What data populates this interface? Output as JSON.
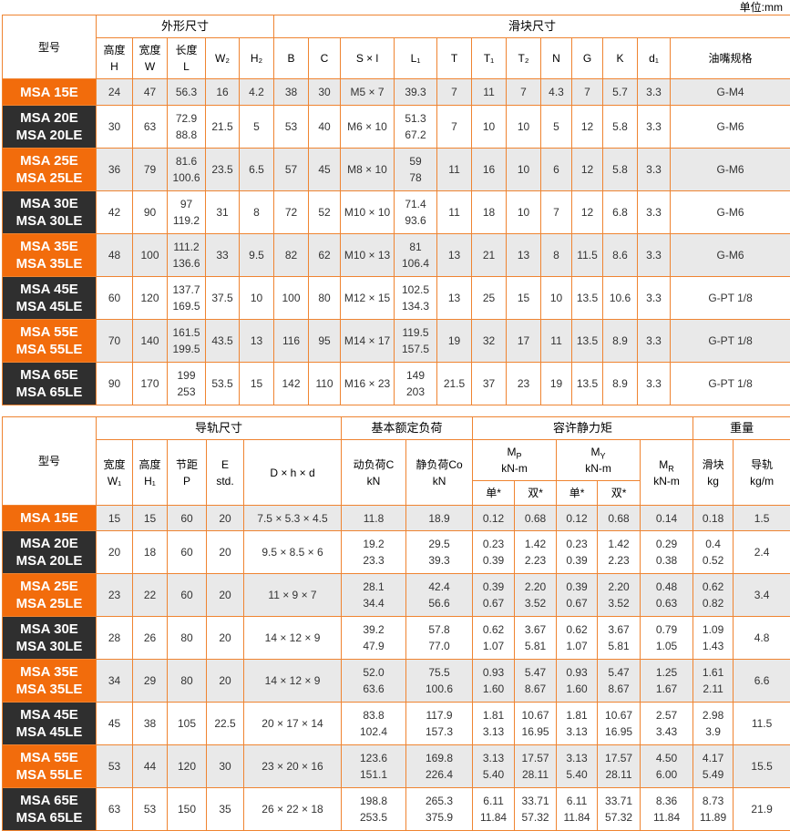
{
  "page": {
    "unit_label": "单位:mm"
  },
  "colors": {
    "accent_orange": "#f26c0c",
    "grid_orange": "#ef8431",
    "dark_label": "#2f2f2f",
    "stripe_gray": "#e9e9e9",
    "text": "#333333"
  },
  "table1": {
    "headers": {
      "model": "型号",
      "group_outer": "外形尺寸",
      "group_slider": "滑块尺寸",
      "cols": [
        "高度\nH",
        "宽度\nW",
        "长度\nL",
        "W₂",
        "H₂",
        "B",
        "C",
        "S × l",
        "L₁",
        "T",
        "T₁",
        "T₂",
        "N",
        "G",
        "K",
        "d₁",
        "油嘴规格"
      ]
    },
    "rows": [
      {
        "model": "MSA 15E",
        "cells": [
          "24",
          "47",
          "56.3",
          "16",
          "4.2",
          "38",
          "30",
          "M5 × 7",
          "39.3",
          "7",
          "11",
          "7",
          "4.3",
          "7",
          "5.7",
          "3.3",
          "G-M4"
        ]
      },
      {
        "model": "MSA 20E\nMSA 20LE",
        "cells": [
          "30",
          "63",
          "72.9\n88.8",
          "21.5",
          "5",
          "53",
          "40",
          "M6 × 10",
          "51.3\n67.2",
          "7",
          "10",
          "10",
          "5",
          "12",
          "5.8",
          "3.3",
          "G-M6"
        ]
      },
      {
        "model": "MSA 25E\nMSA 25LE",
        "cells": [
          "36",
          "79",
          "81.6\n100.6",
          "23.5",
          "6.5",
          "57",
          "45",
          "M8 × 10",
          "59\n78",
          "11",
          "16",
          "10",
          "6",
          "12",
          "5.8",
          "3.3",
          "G-M6"
        ]
      },
      {
        "model": "MSA 30E\nMSA 30LE",
        "cells": [
          "42",
          "90",
          "97\n119.2",
          "31",
          "8",
          "72",
          "52",
          "M10 × 10",
          "71.4\n93.6",
          "11",
          "18",
          "10",
          "7",
          "12",
          "6.8",
          "3.3",
          "G-M6"
        ]
      },
      {
        "model": "MSA 35E\nMSA 35LE",
        "cells": [
          "48",
          "100",
          "111.2\n136.6",
          "33",
          "9.5",
          "82",
          "62",
          "M10 × 13",
          "81\n106.4",
          "13",
          "21",
          "13",
          "8",
          "11.5",
          "8.6",
          "3.3",
          "G-M6"
        ]
      },
      {
        "model": "MSA 45E\nMSA 45LE",
        "cells": [
          "60",
          "120",
          "137.7\n169.5",
          "37.5",
          "10",
          "100",
          "80",
          "M12 × 15",
          "102.5\n134.3",
          "13",
          "25",
          "15",
          "10",
          "13.5",
          "10.6",
          "3.3",
          "G-PT 1/8"
        ]
      },
      {
        "model": "MSA 55E\nMSA 55LE",
        "cells": [
          "70",
          "140",
          "161.5\n199.5",
          "43.5",
          "13",
          "116",
          "95",
          "M14 × 17",
          "119.5\n157.5",
          "19",
          "32",
          "17",
          "11",
          "13.5",
          "8.9",
          "3.3",
          "G-PT 1/8"
        ]
      },
      {
        "model": "MSA 65E\nMSA 65LE",
        "cells": [
          "90",
          "170",
          "199\n253",
          "53.5",
          "15",
          "142",
          "110",
          "M16 × 23",
          "149\n203",
          "21.5",
          "37",
          "23",
          "19",
          "13.5",
          "8.9",
          "3.3",
          "G-PT 1/8"
        ]
      }
    ]
  },
  "table2": {
    "headers": {
      "model": "型号",
      "group_rail": "导轨尺寸",
      "group_load": "基本额定负荷",
      "group_moment": "容许静力矩",
      "group_weight": "重量",
      "rail_cols": [
        "宽度\nW₁",
        "高度\nH₁",
        "节距\nP",
        "E\nstd.",
        "D × h × d"
      ],
      "load_cols": [
        "动负荷C\nkN",
        "静负荷Co\nkN"
      ],
      "mp": {
        "base": "M",
        "sub": "P",
        "unit": "kN-m"
      },
      "my": {
        "base": "M",
        "sub": "Y",
        "unit": "kN-m"
      },
      "mr": {
        "base": "M",
        "sub": "R",
        "unit": "kN-m"
      },
      "moment_sub": [
        "单*",
        "双*",
        "单*",
        "双*"
      ],
      "weight_cols": [
        "滑块\nkg",
        "导轨\nkg/m"
      ]
    },
    "rows": [
      {
        "model": "MSA 15E",
        "cells": [
          "15",
          "15",
          "60",
          "20",
          "7.5 × 5.3 × 4.5",
          "11.8",
          "18.9",
          "0.12",
          "0.68",
          "0.12",
          "0.68",
          "0.14",
          "0.18",
          "1.5"
        ]
      },
      {
        "model": "MSA 20E\nMSA 20LE",
        "cells": [
          "20",
          "18",
          "60",
          "20",
          "9.5 × 8.5 × 6",
          "19.2\n23.3",
          "29.5\n39.3",
          "0.23\n0.39",
          "1.42\n2.23",
          "0.23\n0.39",
          "1.42\n2.23",
          "0.29\n0.38",
          "0.4\n0.52",
          "2.4"
        ]
      },
      {
        "model": "MSA 25E\nMSA 25LE",
        "cells": [
          "23",
          "22",
          "60",
          "20",
          "11 × 9 × 7",
          "28.1\n34.4",
          "42.4\n56.6",
          "0.39\n0.67",
          "2.20\n3.52",
          "0.39\n0.67",
          "2.20\n3.52",
          "0.48\n0.63",
          "0.62\n0.82",
          "3.4"
        ]
      },
      {
        "model": "MSA 30E\nMSA 30LE",
        "cells": [
          "28",
          "26",
          "80",
          "20",
          "14 × 12 × 9",
          "39.2\n47.9",
          "57.8\n77.0",
          "0.62\n1.07",
          "3.67\n5.81",
          "0.62\n1.07",
          "3.67\n5.81",
          "0.79\n1.05",
          "1.09\n1.43",
          "4.8"
        ]
      },
      {
        "model": "MSA 35E\nMSA 35LE",
        "cells": [
          "34",
          "29",
          "80",
          "20",
          "14 × 12 × 9",
          "52.0\n63.6",
          "75.5\n100.6",
          "0.93\n1.60",
          "5.47\n8.67",
          "0.93\n1.60",
          "5.47\n8.67",
          "1.25\n1.67",
          "1.61\n2.11",
          "6.6"
        ]
      },
      {
        "model": "MSA 45E\nMSA 45LE",
        "cells": [
          "45",
          "38",
          "105",
          "22.5",
          "20 × 17 × 14",
          "83.8\n102.4",
          "117.9\n157.3",
          "1.81\n3.13",
          "10.67\n16.95",
          "1.81\n3.13",
          "10.67\n16.95",
          "2.57\n3.43",
          "2.98\n3.9",
          "11.5"
        ]
      },
      {
        "model": "MSA 55E\nMSA 55LE",
        "cells": [
          "53",
          "44",
          "120",
          "30",
          "23 × 20 × 16",
          "123.6\n151.1",
          "169.8\n226.4",
          "3.13\n5.40",
          "17.57\n28.11",
          "3.13\n5.40",
          "17.57\n28.11",
          "4.50\n6.00",
          "4.17\n5.49",
          "15.5"
        ]
      },
      {
        "model": "MSA 65E\nMSA 65LE",
        "cells": [
          "63",
          "53",
          "150",
          "35",
          "26 × 22 × 18",
          "198.8\n253.5",
          "265.3\n375.9",
          "6.11\n11.84",
          "33.71\n57.32",
          "6.11\n11.84",
          "33.71\n57.32",
          "8.36\n11.84",
          "8.73\n11.89",
          "21.9"
        ]
      }
    ]
  }
}
